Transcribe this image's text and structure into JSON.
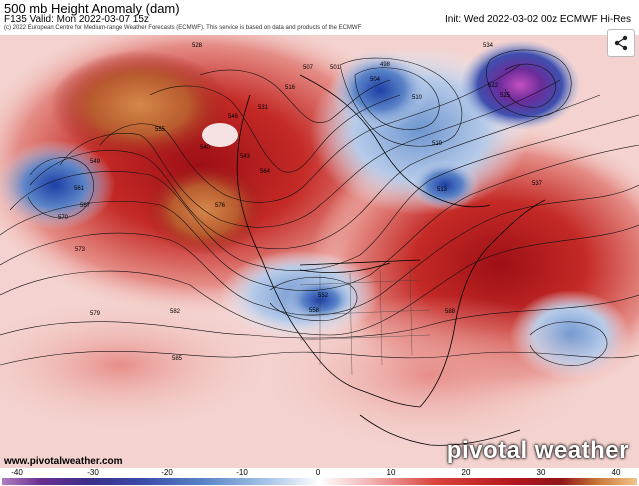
{
  "header": {
    "title": "500 mb Height Anomaly (dam)",
    "valid": "F135 Valid: Mon 2022-03-07 15z",
    "init": "Init: Wed 2022-03-02 00z ECMWF Hi-Res",
    "copyright": "(c) 2022 European Centre for Medium-range Weather Forecasts (ECMWF). This service is based on data and products of the ECMWF"
  },
  "watermark": {
    "site": "www.pivotalweather.com",
    "brand": "pivotal weather"
  },
  "share_icon": "share-icon",
  "colorbar": {
    "ticks": [
      "-40",
      "-30",
      "-20",
      "-10",
      "0",
      "10",
      "20",
      "30",
      "40"
    ],
    "colors": [
      "#6b2f8f",
      "#3b4aa8",
      "#5a86c7",
      "#a9c6e8",
      "#ffffff",
      "#f2b3b3",
      "#d9463e",
      "#b5171e",
      "#e8a25a"
    ]
  },
  "contour_labels": [
    {
      "text": "528"
    },
    {
      "text": "534"
    },
    {
      "text": "540"
    },
    {
      "text": "546"
    },
    {
      "text": "549"
    },
    {
      "text": "555"
    },
    {
      "text": "561"
    },
    {
      "text": "564"
    },
    {
      "text": "567"
    },
    {
      "text": "570"
    },
    {
      "text": "573"
    },
    {
      "text": "576"
    },
    {
      "text": "579"
    },
    {
      "text": "582"
    },
    {
      "text": "585"
    },
    {
      "text": "588"
    },
    {
      "text": "537"
    },
    {
      "text": "531"
    },
    {
      "text": "519"
    },
    {
      "text": "516"
    },
    {
      "text": "510"
    },
    {
      "text": "498"
    },
    {
      "text": "504"
    },
    {
      "text": "522"
    },
    {
      "text": "525"
    },
    {
      "text": "558"
    },
    {
      "text": "552"
    },
    {
      "text": "543"
    },
    {
      "text": "513"
    },
    {
      "text": "507"
    },
    {
      "text": "501"
    }
  ]
}
